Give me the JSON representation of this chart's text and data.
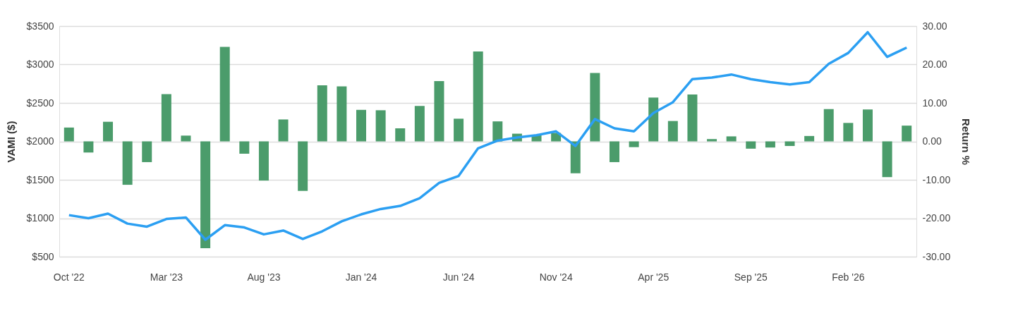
{
  "chart_data": {
    "type": "bar",
    "ylabel": "VAMI ($)",
    "y2label": "Return %",
    "categories": [
      "Oct '22",
      null,
      null,
      null,
      null,
      "Mar '23",
      null,
      null,
      null,
      null,
      "Aug '23",
      null,
      null,
      null,
      null,
      "Jan '24",
      null,
      null,
      null,
      null,
      "Jun '24",
      null,
      null,
      null,
      null,
      "Nov '24",
      null,
      null,
      null,
      null,
      "Apr '25",
      null,
      null,
      null,
      null,
      "Sep '25",
      null,
      null,
      null,
      null,
      "Feb '26",
      null,
      null,
      null
    ],
    "series": [
      {
        "axis": "y2",
        "color": "#4b9c6b",
        "values": [
          3.6,
          -2.9,
          5.1,
          -11.3,
          -5.4,
          12.3,
          1.5,
          -27.8,
          24.6,
          -3.2,
          -10.2,
          5.7,
          -12.9,
          14.6,
          14.3,
          8.2,
          8.1,
          3.4,
          9.2,
          15.7,
          5.9,
          23.4,
          5.2,
          2.0,
          1.6,
          2.2,
          -8.3,
          17.8,
          -5.4,
          -1.5,
          11.4,
          5.3,
          12.2,
          0.6,
          1.3,
          -1.9,
          -1.6,
          -1.2,
          1.4,
          8.4,
          4.8,
          8.3,
          -9.3,
          4.1
        ]
      },
      {
        "type": "line",
        "axis": "y",
        "color": "#2b9ff2",
        "values": [
          1040,
          1000,
          1060,
          930,
          890,
          990,
          1010,
          720,
          910,
          880,
          790,
          840,
          730,
          830,
          960,
          1050,
          1120,
          1160,
          1260,
          1460,
          1550,
          1910,
          2010,
          2050,
          2080,
          2130,
          1940,
          2290,
          2170,
          2130,
          2370,
          2510,
          2810,
          2830,
          2870,
          2810,
          2770,
          2740,
          2770,
          3010,
          3150,
          3420,
          3100,
          3220
        ]
      }
    ],
    "ylim": [
      500,
      3500
    ],
    "yticks": [
      {
        "value": 500,
        "label": "$500"
      },
      {
        "value": 1000,
        "label": "$1000"
      },
      {
        "value": 1500,
        "label": "$1500"
      },
      {
        "value": 2000,
        "label": "$2000"
      },
      {
        "value": 2500,
        "label": "$2500"
      },
      {
        "value": 3000,
        "label": "$3000"
      },
      {
        "value": 3500,
        "label": "$3500"
      }
    ],
    "y2lim": [
      -30,
      30
    ],
    "y2ticks": [
      {
        "value": -30,
        "label": "-30.00"
      },
      {
        "value": -20,
        "label": "-20.00"
      },
      {
        "value": -10,
        "label": "-10.00"
      },
      {
        "value": 0,
        "label": "0.00"
      },
      {
        "value": 10,
        "label": "10.00"
      },
      {
        "value": 20,
        "label": "20.00"
      },
      {
        "value": 30,
        "label": "30.00"
      }
    ],
    "grid": "y"
  }
}
